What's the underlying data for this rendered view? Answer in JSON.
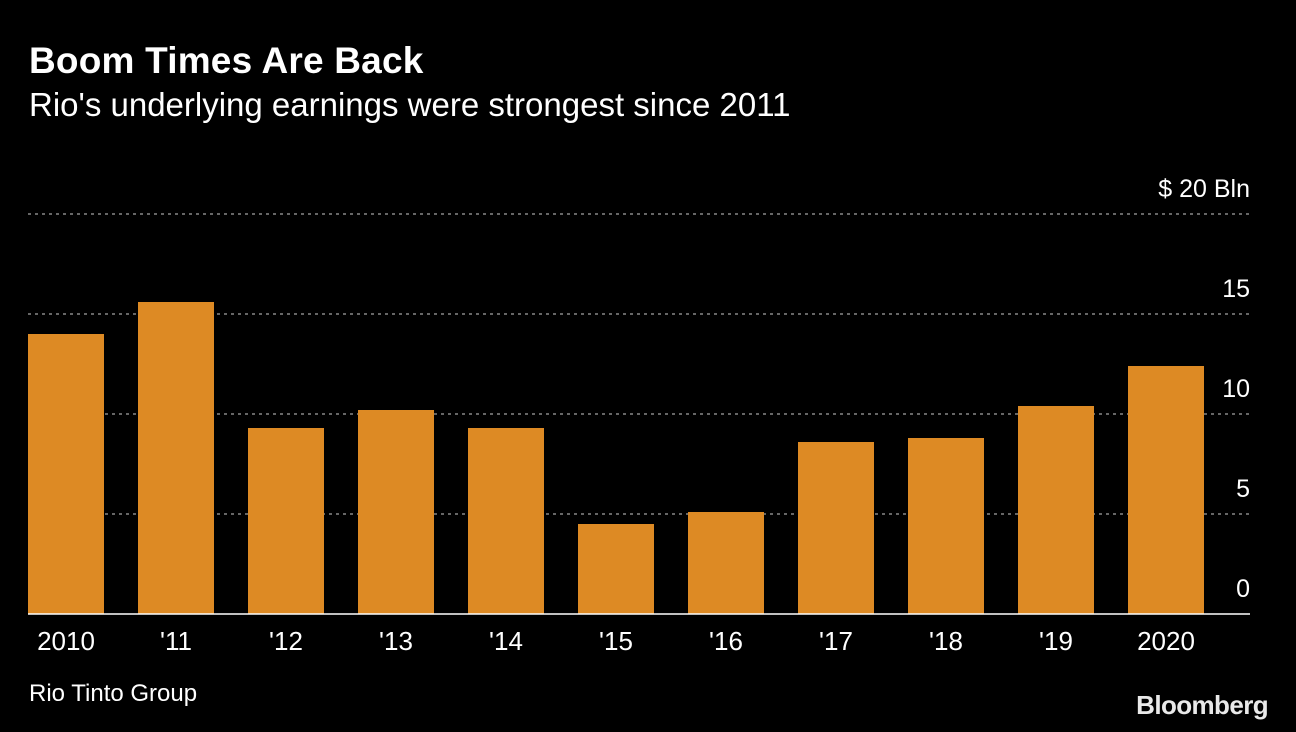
{
  "title": "Boom Times Are Back",
  "subtitle": "Rio's underlying earnings were strongest since 2011",
  "source": "Rio Tinto Group",
  "brand": "Bloomberg",
  "colors": {
    "background": "#000000",
    "bar": "#dd8a24",
    "text": "#ffffff",
    "gridline": "#888888",
    "baseline": "#ffffff"
  },
  "chart_data": {
    "type": "bar",
    "categories": [
      "2010",
      "'11",
      "'12",
      "'13",
      "'14",
      "'15",
      "'16",
      "'17",
      "'18",
      "'19",
      "2020"
    ],
    "values": [
      14.0,
      15.6,
      9.3,
      10.2,
      9.3,
      4.5,
      5.1,
      8.6,
      8.8,
      10.4,
      12.4
    ],
    "y_ticks": [
      0,
      5,
      10,
      15,
      20
    ],
    "y_tick_labels": [
      "0",
      "5",
      "10",
      "15",
      "$ 20 Bln"
    ],
    "ylim": [
      0,
      20
    ],
    "y_axis_side": "right",
    "grid": true,
    "grid_style": "dotted",
    "legend": false,
    "title": "Boom Times Are Back",
    "subtitle": "Rio's underlying earnings were strongest since 2011"
  }
}
